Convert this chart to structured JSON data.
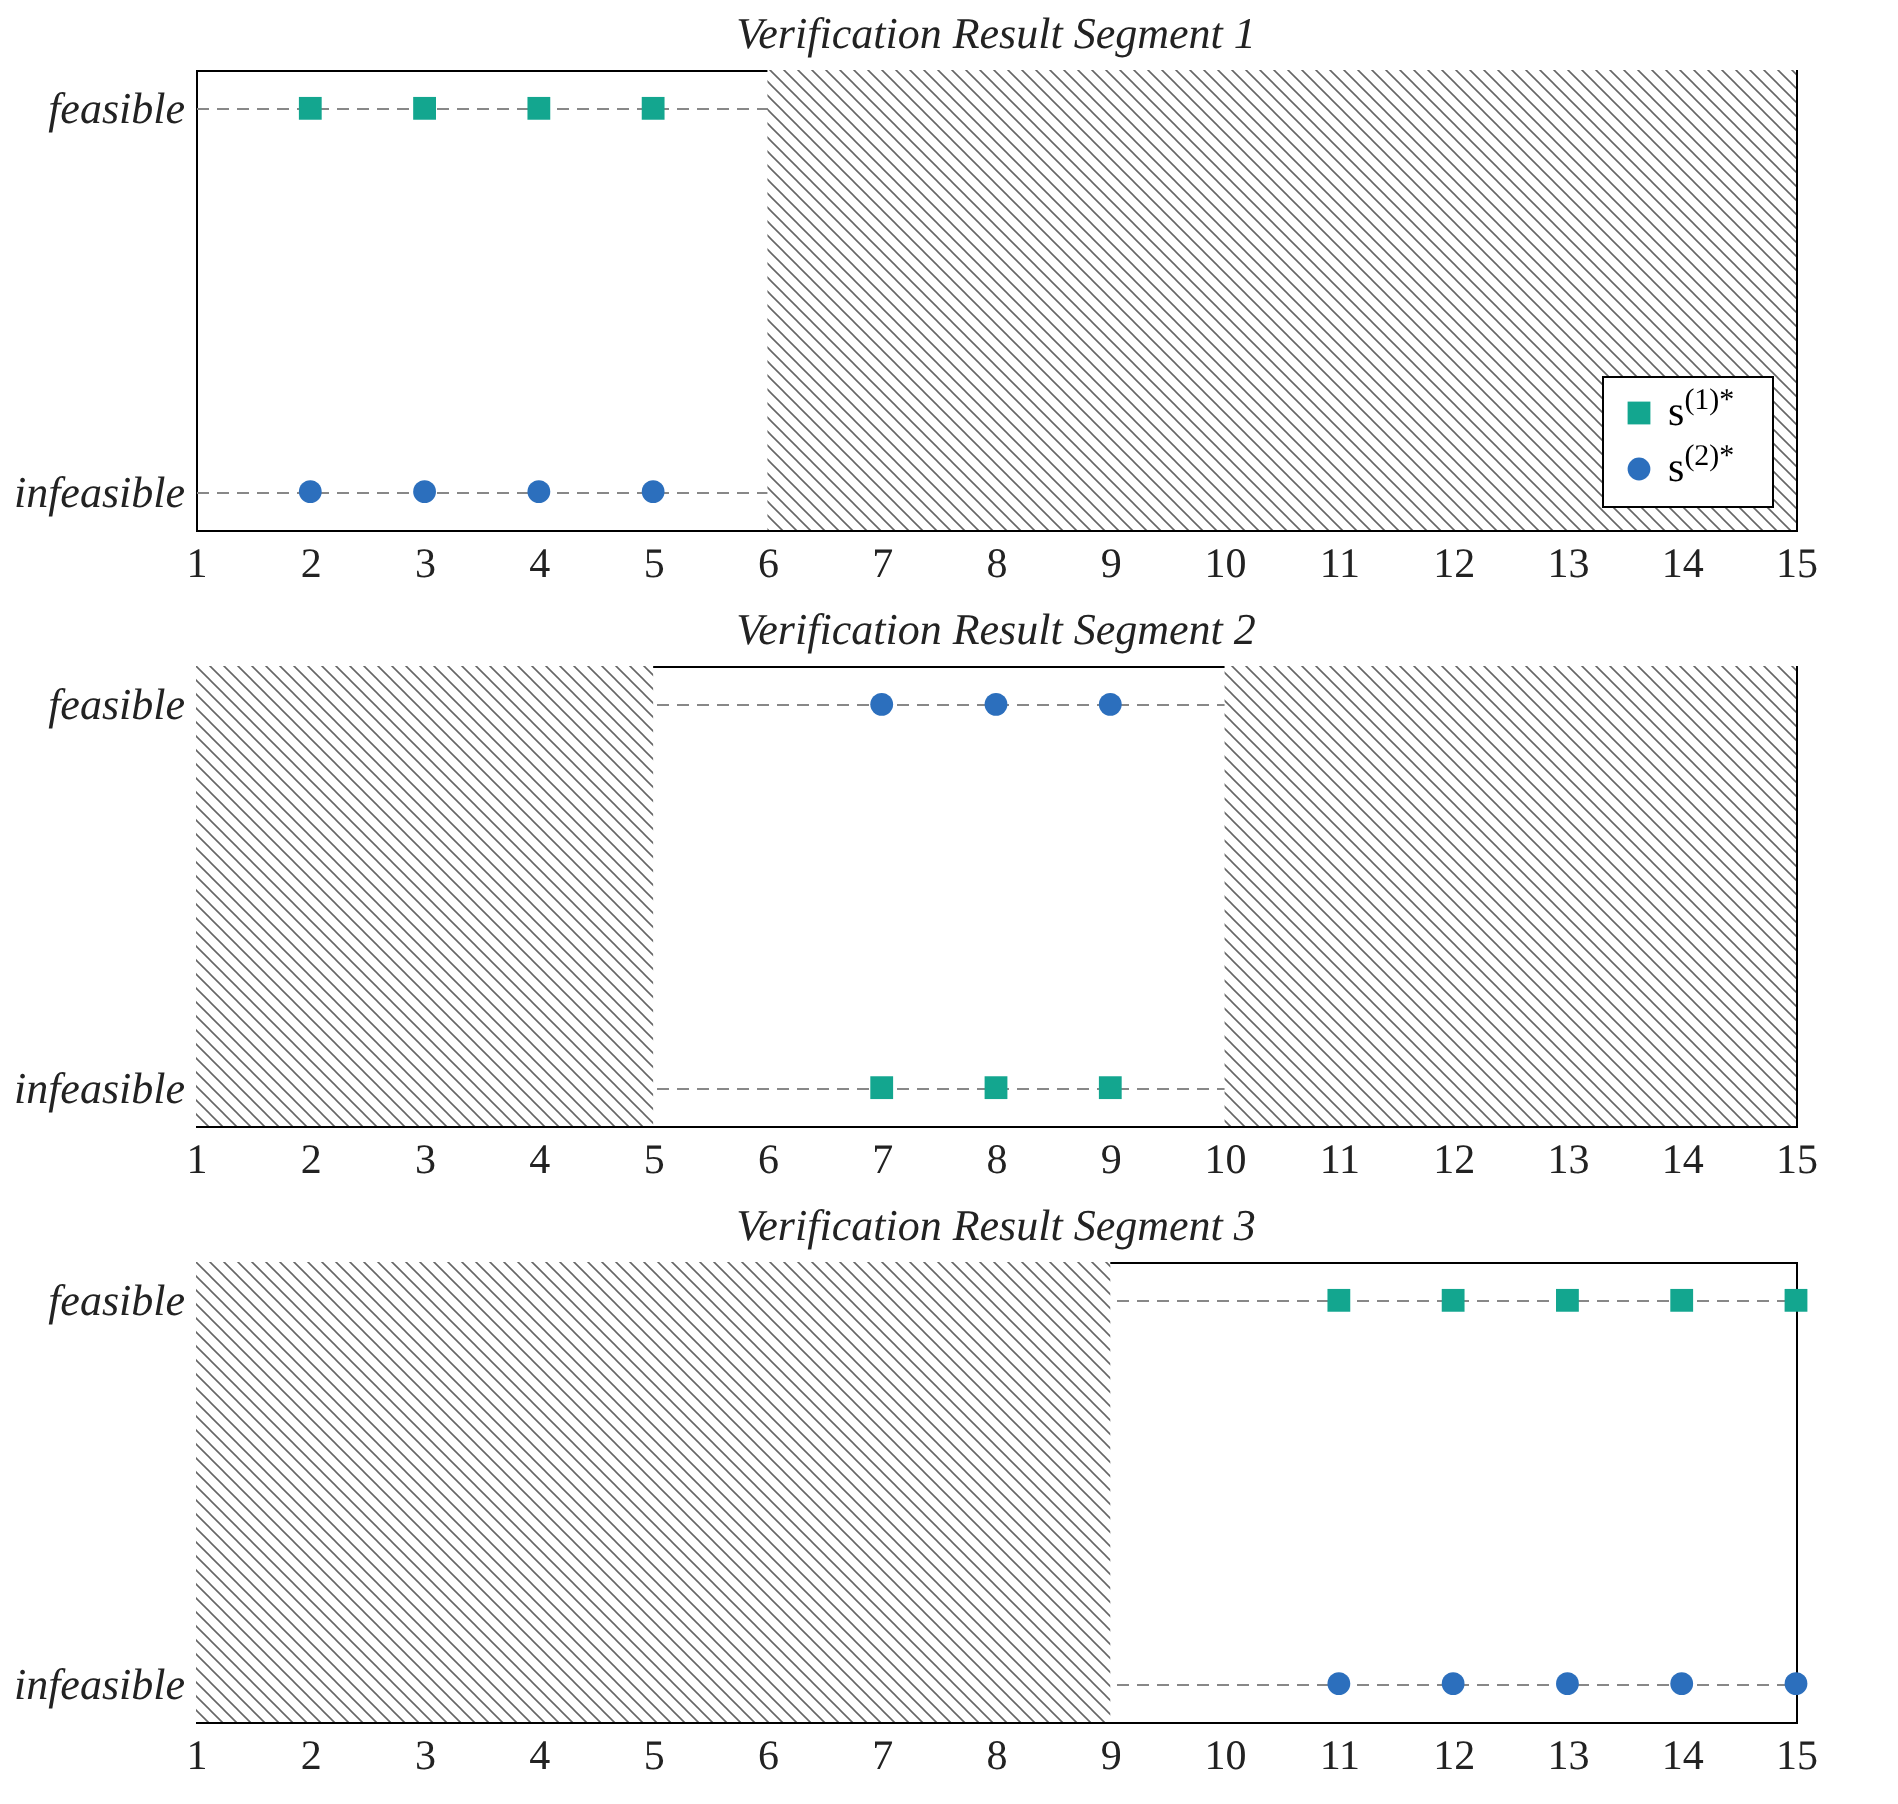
{
  "chart_data": [
    {
      "type": "scatter",
      "title": "Verification Result Segment 1",
      "orientation": "horizontal",
      "categories": [
        "feasible",
        "infeasible"
      ],
      "xlim": [
        1,
        15
      ],
      "xticks": [
        1,
        2,
        3,
        4,
        5,
        6,
        7,
        8,
        9,
        10,
        11,
        12,
        13,
        14,
        15
      ],
      "grid": "y",
      "legend": "bottom right",
      "series": [
        {
          "name": "s$^{(1)*}$",
          "color": "#13a68f",
          "marker": "square",
          "x": [
            "feasible",
            "feasible",
            "feasible",
            "feasible"
          ],
          "values": [
            2,
            3,
            4,
            5
          ]
        },
        {
          "name": "s$^{(2)*}$",
          "color": "#2c6fbd",
          "marker": "circle",
          "x": [
            "infeasible",
            "infeasible",
            "infeasible",
            "infeasible"
          ],
          "values": [
            2,
            3,
            4,
            5
          ]
        }
      ],
      "bands": [
        {
          "axis": "x",
          "from": 6,
          "to": 15,
          "color": "#666666"
        }
      ]
    },
    {
      "type": "scatter",
      "title": "Verification Result Segment 2",
      "orientation": "horizontal",
      "categories": [
        "feasible",
        "infeasible"
      ],
      "xlim": [
        1,
        15
      ],
      "xticks": [
        1,
        2,
        3,
        4,
        5,
        6,
        7,
        8,
        9,
        10,
        11,
        12,
        13,
        14,
        15
      ],
      "grid": "y",
      "series": [
        {
          "color": "#13a68f",
          "marker": "square",
          "x": [
            "infeasible",
            "infeasible",
            "infeasible"
          ],
          "values": [
            7,
            8,
            9
          ]
        },
        {
          "color": "#2c6fbd",
          "marker": "circle",
          "x": [
            "feasible",
            "feasible",
            "feasible"
          ],
          "values": [
            7,
            8,
            9
          ]
        }
      ],
      "bands": [
        {
          "axis": "x",
          "from": 1,
          "to": 5,
          "color": "#666666"
        },
        {
          "axis": "x",
          "from": 10,
          "to": 15,
          "color": "#666666"
        }
      ]
    },
    {
      "type": "scatter",
      "title": "Verification Result Segment 3",
      "orientation": "horizontal",
      "categories": [
        "feasible",
        "infeasible"
      ],
      "xlim": [
        1,
        15
      ],
      "xticks": [
        1,
        2,
        3,
        4,
        5,
        6,
        7,
        8,
        9,
        10,
        11,
        12,
        13,
        14,
        15
      ],
      "grid": "y",
      "series": [
        {
          "color": "#13a68f",
          "marker": "square",
          "x": [
            "feasible",
            "feasible",
            "feasible",
            "feasible",
            "feasible"
          ],
          "values": [
            11,
            12,
            13,
            14,
            15
          ]
        },
        {
          "color": "#2c6fbd",
          "marker": "circle",
          "x": [
            "infeasible",
            "infeasible",
            "infeasible",
            "infeasible",
            "infeasible"
          ],
          "values": [
            11,
            12,
            13,
            14,
            15
          ]
        }
      ],
      "bands": [
        {
          "axis": "x",
          "from": 1,
          "to": 9,
          "color": "#666666"
        }
      ]
    }
  ]
}
